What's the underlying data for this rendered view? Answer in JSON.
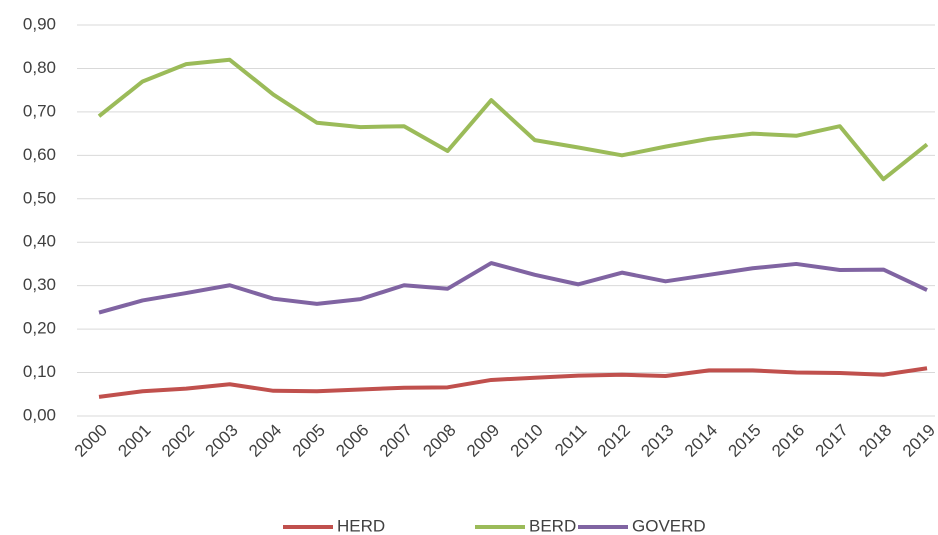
{
  "chart_data": {
    "type": "line",
    "categories": [
      "2000",
      "2001",
      "2002",
      "2003",
      "2004",
      "2005",
      "2006",
      "2007",
      "2008",
      "2009",
      "2010",
      "2011",
      "2012",
      "2013",
      "2014",
      "2015",
      "2016",
      "2017",
      "2018",
      "2019"
    ],
    "series": [
      {
        "name": "HERD",
        "color": "#c0504d",
        "values": [
          0.044,
          0.057,
          0.063,
          0.073,
          0.058,
          0.057,
          0.061,
          0.065,
          0.066,
          0.083,
          0.088,
          0.093,
          0.095,
          0.092,
          0.105,
          0.105,
          0.1,
          0.099,
          0.095,
          0.11
        ]
      },
      {
        "name": "BERD",
        "color": "#9bbb59",
        "values": [
          0.69,
          0.77,
          0.81,
          0.82,
          0.74,
          0.675,
          0.665,
          0.667,
          0.61,
          0.727,
          0.635,
          0.618,
          0.6,
          0.62,
          0.638,
          0.65,
          0.645,
          0.667,
          0.545,
          0.625
        ]
      },
      {
        "name": "GOVERD",
        "color": "#8064a2",
        "values": [
          0.238,
          0.266,
          0.283,
          0.301,
          0.27,
          0.258,
          0.269,
          0.301,
          0.293,
          0.352,
          0.325,
          0.303,
          0.33,
          0.31,
          0.325,
          0.34,
          0.35,
          0.336,
          0.337,
          0.29
        ]
      }
    ],
    "ylim": [
      0,
      0.9
    ],
    "yticks": [
      {
        "value": 0,
        "label": "0,00"
      },
      {
        "value": 0.1,
        "label": "0,10"
      },
      {
        "value": 0.2,
        "label": "0,20"
      },
      {
        "value": 0.3,
        "label": "0,30"
      },
      {
        "value": 0.4,
        "label": "0,40"
      },
      {
        "value": 0.5,
        "label": "0,50"
      },
      {
        "value": 0.6,
        "label": "0,60"
      },
      {
        "value": 0.7,
        "label": "0,70"
      },
      {
        "value": 0.8,
        "label": "0,80"
      },
      {
        "value": 0.9,
        "label": "0,90"
      }
    ],
    "grid": true,
    "legend": "bottom"
  }
}
